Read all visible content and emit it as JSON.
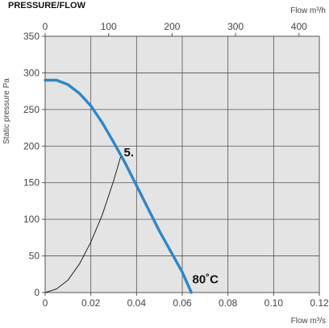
{
  "chart_data": {
    "type": "line",
    "title": "PRESSURE/FLOW",
    "xlabel": "Flow m³/s",
    "x2label": "Flow m³/h",
    "ylabel": "Static pressure Pa",
    "xlim": [
      0,
      0.12
    ],
    "ylim": [
      0,
      350
    ],
    "x_ticks": [
      "0",
      "0.02",
      "0.04",
      "0.06",
      "0.08",
      "0.10",
      "0.12"
    ],
    "x2_ticks": [
      "0",
      "100",
      "200",
      "300",
      "400"
    ],
    "y_ticks": [
      "0",
      "50",
      "100",
      "150",
      "200",
      "250",
      "300",
      "350"
    ],
    "grid": true,
    "background_color": "#e4e4e4",
    "series": [
      {
        "color": "#2e86c8",
        "points": [
          [
            0.0,
            290
          ],
          [
            0.005,
            290
          ],
          [
            0.01,
            284
          ],
          [
            0.015,
            272
          ],
          [
            0.02,
            255
          ],
          [
            0.025,
            232
          ],
          [
            0.03,
            205
          ],
          [
            0.035,
            177
          ],
          [
            0.04,
            146
          ],
          [
            0.045,
            115
          ],
          [
            0.05,
            84
          ],
          [
            0.055,
            56
          ],
          [
            0.06,
            28
          ],
          [
            0.064,
            0
          ]
        ]
      },
      {
        "color": "#222222",
        "points": [
          [
            0.0,
            0
          ],
          [
            0.005,
            5
          ],
          [
            0.01,
            17
          ],
          [
            0.015,
            39
          ],
          [
            0.02,
            69
          ],
          [
            0.025,
            106
          ],
          [
            0.03,
            153
          ],
          [
            0.033,
            185
          ]
        ]
      }
    ],
    "annotations": [
      {
        "text": "5.",
        "x": 0.033,
        "y": 188
      },
      {
        "text": "80˚C",
        "x": 0.063,
        "y": 15
      }
    ]
  }
}
